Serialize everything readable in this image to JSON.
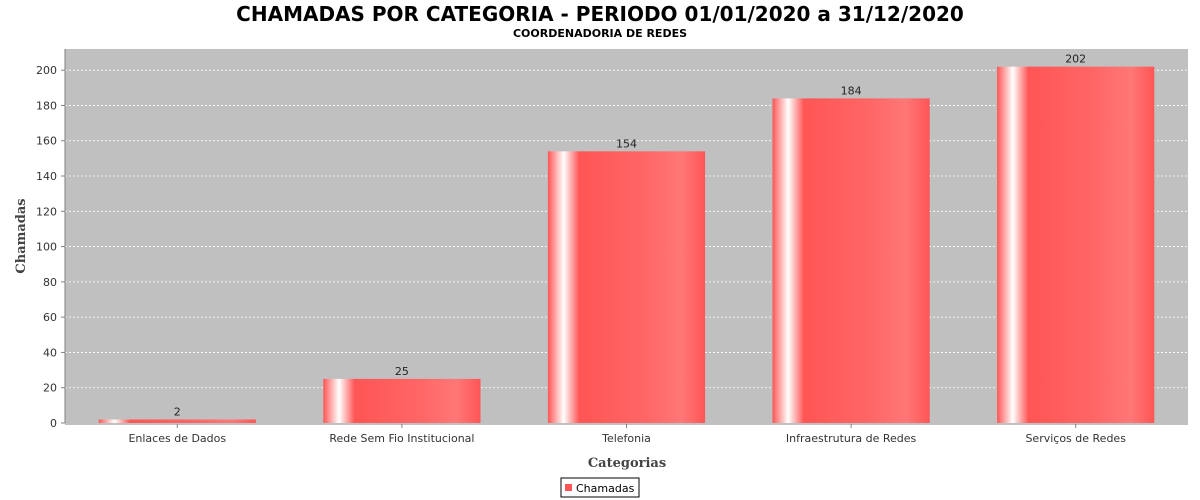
{
  "chart_data": {
    "type": "bar",
    "title": "CHAMADAS POR CATEGORIA - PERIODO 01/01/2020 a 31/12/2020",
    "subtitle": "COORDENADORIA DE REDES",
    "xlabel": "Categorias",
    "ylabel": "Chamadas",
    "categories": [
      "Enlaces de Dados",
      "Rede Sem Fio Institucional",
      "Telefonia",
      "Infraestrutura de Redes",
      "Serviços de Redes"
    ],
    "series": [
      {
        "name": "Chamadas",
        "values": [
          2,
          25,
          154,
          184,
          202
        ],
        "color": "#ff5555"
      }
    ],
    "ylim": [
      0,
      212
    ],
    "yticks": [
      0,
      20,
      40,
      60,
      80,
      100,
      120,
      140,
      160,
      180,
      200
    ],
    "grid": true,
    "legend_position": "bottom",
    "plot_background": "#c0c0c0"
  }
}
